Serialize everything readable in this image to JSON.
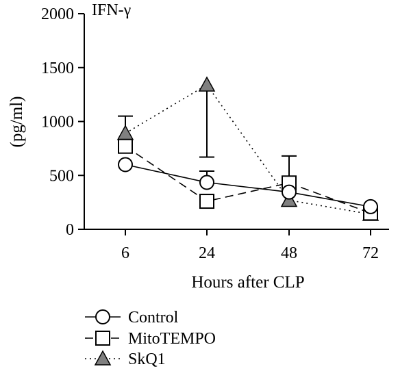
{
  "chart_data": {
    "type": "line",
    "title": "IFN-γ",
    "xlabel": "Hours after CLP",
    "ylabel": "(pg/ml)",
    "categories": [
      "6",
      "24",
      "48",
      "72"
    ],
    "ylim": [
      0,
      2000
    ],
    "yticks": [
      "0",
      "500",
      "1000",
      "1500",
      "2000"
    ],
    "grid": false,
    "legend_position": "bottom-left",
    "series": [
      {
        "name": "Control",
        "line_style": "solid",
        "marker": "circle",
        "values": [
          600,
          435,
          345,
          210
        ],
        "error_upper": [
          null,
          540,
          null,
          null
        ]
      },
      {
        "name": "MitoTEMPO",
        "line_style": "dashed",
        "marker": "square",
        "values": [
          770,
          260,
          430,
          150
        ],
        "error_upper": [
          null,
          null,
          680,
          null
        ]
      },
      {
        "name": "SkQ1",
        "line_style": "dotted",
        "marker": "triangle",
        "values": [
          890,
          1340,
          270,
          140
        ],
        "error_upper": [
          1050,
          null,
          null,
          null
        ],
        "error_lower": [
          null,
          670,
          null,
          null
        ]
      }
    ]
  }
}
